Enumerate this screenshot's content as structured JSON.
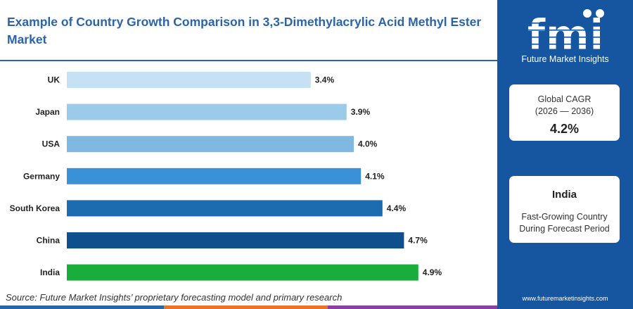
{
  "header": {
    "title": "Example of Country Growth Comparison in 3,3-Dimethylacrylic Acid Methyl Ester Market"
  },
  "source": "Source: Future Market Insights’ proprietary forecasting model and primary research",
  "brand": {
    "logo_text": "fmi",
    "name": "Future Market Insights",
    "website": "www.futuremarketinsights.com",
    "panel_color": "#1656a0"
  },
  "cagr_card": {
    "label_line1": "Global CAGR",
    "label_line2": "(2026 — 2036)",
    "value": "4.2%"
  },
  "highlight_card": {
    "country": "India",
    "desc_line1": "Fast-Growing Country",
    "desc_line2": "During Forecast Period"
  },
  "chart_data": {
    "type": "bar",
    "orientation": "horizontal",
    "categories": [
      "UK",
      "Japan",
      "USA",
      "Germany",
      "South Korea",
      "China",
      "India"
    ],
    "values": [
      3.4,
      3.9,
      4.0,
      4.1,
      4.4,
      4.7,
      4.9
    ],
    "labels": [
      "3.4%",
      "3.9%",
      "4.0%",
      "4.1%",
      "4.4%",
      "4.7%",
      "4.9%"
    ],
    "colors": [
      "#c6e1f4",
      "#9ccbea",
      "#7fb8e0",
      "#3b91d6",
      "#1e6cb0",
      "#0f4f8c",
      "#19ad3b"
    ],
    "xlim": [
      0,
      5.9
    ],
    "grid": false
  }
}
